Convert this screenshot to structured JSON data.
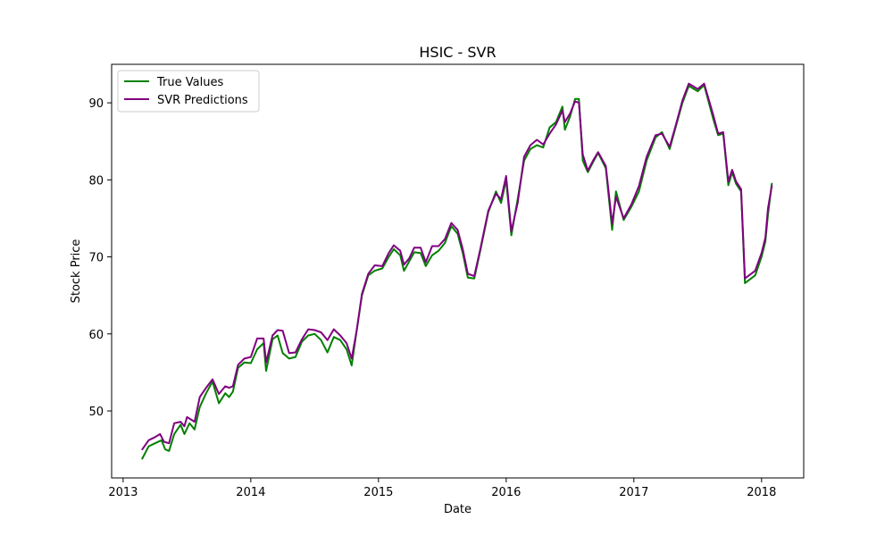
{
  "chart_data": {
    "type": "line",
    "title": "HSIC - SVR",
    "xlabel": "Date",
    "ylabel": "Stock Price",
    "xlim": [
      2012.91,
      2018.33
    ],
    "ylim": [
      41.3,
      95.0
    ],
    "x_ticks": [
      {
        "value": 2013,
        "label": "2013"
      },
      {
        "value": 2014,
        "label": "2014"
      },
      {
        "value": 2015,
        "label": "2015"
      },
      {
        "value": 2016,
        "label": "2016"
      },
      {
        "value": 2017,
        "label": "2017"
      },
      {
        "value": 2018,
        "label": "2018"
      }
    ],
    "y_ticks": [
      {
        "value": 50,
        "label": "50"
      },
      {
        "value": 60,
        "label": "60"
      },
      {
        "value": 70,
        "label": "70"
      },
      {
        "value": 80,
        "label": "80"
      },
      {
        "value": 90,
        "label": "90"
      }
    ],
    "grid": false,
    "legend": "upper-left",
    "series": [
      {
        "name": "True Values",
        "color": "#008000",
        "points": [
          [
            2013.15,
            43.8
          ],
          [
            2013.2,
            45.4
          ],
          [
            2013.25,
            45.8
          ],
          [
            2013.3,
            46.2
          ],
          [
            2013.33,
            45.0
          ],
          [
            2013.36,
            44.8
          ],
          [
            2013.4,
            47.0
          ],
          [
            2013.45,
            48.2
          ],
          [
            2013.48,
            47.0
          ],
          [
            2013.52,
            48.4
          ],
          [
            2013.56,
            47.6
          ],
          [
            2013.6,
            50.5
          ],
          [
            2013.65,
            52.3
          ],
          [
            2013.7,
            53.8
          ],
          [
            2013.75,
            51.0
          ],
          [
            2013.8,
            52.3
          ],
          [
            2013.83,
            51.8
          ],
          [
            2013.86,
            52.5
          ],
          [
            2013.9,
            55.6
          ],
          [
            2013.95,
            56.3
          ],
          [
            2014.0,
            56.2
          ],
          [
            2014.05,
            58.0
          ],
          [
            2014.1,
            58.8
          ],
          [
            2014.12,
            55.2
          ],
          [
            2014.17,
            59.3
          ],
          [
            2014.21,
            59.8
          ],
          [
            2014.25,
            57.5
          ],
          [
            2014.3,
            56.8
          ],
          [
            2014.35,
            57.0
          ],
          [
            2014.4,
            59.0
          ],
          [
            2014.45,
            59.8
          ],
          [
            2014.5,
            60.0
          ],
          [
            2014.55,
            59.2
          ],
          [
            2014.6,
            57.6
          ],
          [
            2014.65,
            59.6
          ],
          [
            2014.7,
            59.2
          ],
          [
            2014.75,
            58.0
          ],
          [
            2014.79,
            55.9
          ],
          [
            2014.83,
            60.5
          ],
          [
            2014.87,
            65.0
          ],
          [
            2014.92,
            67.6
          ],
          [
            2014.97,
            68.2
          ],
          [
            2015.03,
            68.5
          ],
          [
            2015.08,
            70.0
          ],
          [
            2015.12,
            71.0
          ],
          [
            2015.17,
            70.2
          ],
          [
            2015.2,
            68.2
          ],
          [
            2015.24,
            69.4
          ],
          [
            2015.28,
            70.6
          ],
          [
            2015.33,
            70.5
          ],
          [
            2015.37,
            68.8
          ],
          [
            2015.42,
            70.2
          ],
          [
            2015.47,
            70.8
          ],
          [
            2015.52,
            71.8
          ],
          [
            2015.57,
            74.0
          ],
          [
            2015.62,
            73.0
          ],
          [
            2015.66,
            70.5
          ],
          [
            2015.7,
            67.3
          ],
          [
            2015.75,
            67.2
          ],
          [
            2015.8,
            71.0
          ],
          [
            2015.86,
            75.8
          ],
          [
            2015.92,
            78.5
          ],
          [
            2015.96,
            77.0
          ],
          [
            2016.0,
            80.0
          ],
          [
            2016.04,
            72.8
          ],
          [
            2016.09,
            77.5
          ],
          [
            2016.14,
            82.5
          ],
          [
            2016.19,
            84.0
          ],
          [
            2016.24,
            84.5
          ],
          [
            2016.29,
            84.2
          ],
          [
            2016.34,
            86.8
          ],
          [
            2016.39,
            87.5
          ],
          [
            2016.44,
            89.5
          ],
          [
            2016.46,
            86.5
          ],
          [
            2016.5,
            88.2
          ],
          [
            2016.54,
            90.5
          ],
          [
            2016.57,
            90.5
          ],
          [
            2016.6,
            82.5
          ],
          [
            2016.64,
            81.0
          ],
          [
            2016.68,
            82.3
          ],
          [
            2016.72,
            83.5
          ],
          [
            2016.78,
            81.5
          ],
          [
            2016.83,
            73.5
          ],
          [
            2016.86,
            78.5
          ],
          [
            2016.92,
            74.8
          ],
          [
            2016.98,
            76.5
          ],
          [
            2017.04,
            78.5
          ],
          [
            2017.1,
            82.5
          ],
          [
            2017.17,
            85.5
          ],
          [
            2017.22,
            86.2
          ],
          [
            2017.28,
            84.0
          ],
          [
            2017.33,
            87.0
          ],
          [
            2017.38,
            90.0
          ],
          [
            2017.43,
            92.2
          ],
          [
            2017.5,
            91.5
          ],
          [
            2017.55,
            92.3
          ],
          [
            2017.62,
            88.0
          ],
          [
            2017.66,
            85.8
          ],
          [
            2017.7,
            86.0
          ],
          [
            2017.74,
            79.3
          ],
          [
            2017.77,
            81.0
          ],
          [
            2017.8,
            79.5
          ],
          [
            2017.84,
            78.5
          ],
          [
            2017.87,
            66.6
          ],
          [
            2017.95,
            67.6
          ],
          [
            2018.0,
            70.0
          ],
          [
            2018.03,
            72.0
          ],
          [
            2018.05,
            75.5
          ],
          [
            2018.08,
            79.5
          ]
        ]
      },
      {
        "name": "SVR Predictions",
        "color": "#800080",
        "points": [
          [
            2013.15,
            45.0
          ],
          [
            2013.2,
            46.2
          ],
          [
            2013.25,
            46.6
          ],
          [
            2013.29,
            47.0
          ],
          [
            2013.32,
            46.0
          ],
          [
            2013.36,
            45.8
          ],
          [
            2013.4,
            48.4
          ],
          [
            2013.45,
            48.6
          ],
          [
            2013.48,
            48.0
          ],
          [
            2013.5,
            49.2
          ],
          [
            2013.56,
            48.6
          ],
          [
            2013.6,
            51.8
          ],
          [
            2013.65,
            53.0
          ],
          [
            2013.7,
            54.1
          ],
          [
            2013.75,
            52.2
          ],
          [
            2013.8,
            53.2
          ],
          [
            2013.83,
            53.0
          ],
          [
            2013.86,
            53.2
          ],
          [
            2013.9,
            56.0
          ],
          [
            2013.95,
            56.8
          ],
          [
            2014.0,
            57.0
          ],
          [
            2014.05,
            59.4
          ],
          [
            2014.1,
            59.4
          ],
          [
            2014.12,
            56.3
          ],
          [
            2014.17,
            59.8
          ],
          [
            2014.21,
            60.5
          ],
          [
            2014.25,
            60.4
          ],
          [
            2014.3,
            57.5
          ],
          [
            2014.35,
            57.6
          ],
          [
            2014.4,
            59.3
          ],
          [
            2014.45,
            60.6
          ],
          [
            2014.5,
            60.5
          ],
          [
            2014.55,
            60.2
          ],
          [
            2014.6,
            59.2
          ],
          [
            2014.65,
            60.6
          ],
          [
            2014.7,
            59.8
          ],
          [
            2014.75,
            58.8
          ],
          [
            2014.79,
            56.8
          ],
          [
            2014.83,
            60.5
          ],
          [
            2014.87,
            65.2
          ],
          [
            2014.92,
            67.8
          ],
          [
            2014.97,
            68.9
          ],
          [
            2015.03,
            68.8
          ],
          [
            2015.08,
            70.5
          ],
          [
            2015.12,
            71.5
          ],
          [
            2015.17,
            70.8
          ],
          [
            2015.2,
            69.0
          ],
          [
            2015.24,
            69.8
          ],
          [
            2015.28,
            71.2
          ],
          [
            2015.33,
            71.2
          ],
          [
            2015.37,
            69.3
          ],
          [
            2015.42,
            71.4
          ],
          [
            2015.47,
            71.4
          ],
          [
            2015.52,
            72.3
          ],
          [
            2015.57,
            74.4
          ],
          [
            2015.62,
            73.5
          ],
          [
            2015.66,
            71.0
          ],
          [
            2015.7,
            67.8
          ],
          [
            2015.75,
            67.5
          ],
          [
            2015.8,
            71.2
          ],
          [
            2015.86,
            76.0
          ],
          [
            2015.92,
            78.2
          ],
          [
            2015.96,
            77.5
          ],
          [
            2016.0,
            80.5
          ],
          [
            2016.04,
            73.3
          ],
          [
            2016.09,
            77.0
          ],
          [
            2016.14,
            83.0
          ],
          [
            2016.19,
            84.5
          ],
          [
            2016.24,
            85.2
          ],
          [
            2016.29,
            84.6
          ],
          [
            2016.34,
            86.0
          ],
          [
            2016.39,
            87.2
          ],
          [
            2016.44,
            89.0
          ],
          [
            2016.46,
            87.5
          ],
          [
            2016.5,
            88.6
          ],
          [
            2016.54,
            90.2
          ],
          [
            2016.57,
            90.0
          ],
          [
            2016.6,
            83.3
          ],
          [
            2016.64,
            81.2
          ],
          [
            2016.68,
            82.5
          ],
          [
            2016.72,
            83.6
          ],
          [
            2016.78,
            81.8
          ],
          [
            2016.83,
            74.3
          ],
          [
            2016.86,
            77.8
          ],
          [
            2016.92,
            75.0
          ],
          [
            2016.98,
            76.8
          ],
          [
            2017.04,
            79.2
          ],
          [
            2017.1,
            83.0
          ],
          [
            2017.17,
            85.8
          ],
          [
            2017.22,
            86.0
          ],
          [
            2017.28,
            84.3
          ],
          [
            2017.33,
            87.2
          ],
          [
            2017.38,
            90.3
          ],
          [
            2017.43,
            92.5
          ],
          [
            2017.5,
            91.8
          ],
          [
            2017.55,
            92.5
          ],
          [
            2017.62,
            88.5
          ],
          [
            2017.66,
            86.0
          ],
          [
            2017.7,
            86.2
          ],
          [
            2017.74,
            79.8
          ],
          [
            2017.77,
            81.3
          ],
          [
            2017.8,
            79.8
          ],
          [
            2017.84,
            78.8
          ],
          [
            2017.87,
            67.2
          ],
          [
            2017.95,
            68.2
          ],
          [
            2018.0,
            70.5
          ],
          [
            2018.03,
            72.5
          ],
          [
            2018.05,
            76.3
          ],
          [
            2018.08,
            79.2
          ]
        ]
      }
    ]
  }
}
